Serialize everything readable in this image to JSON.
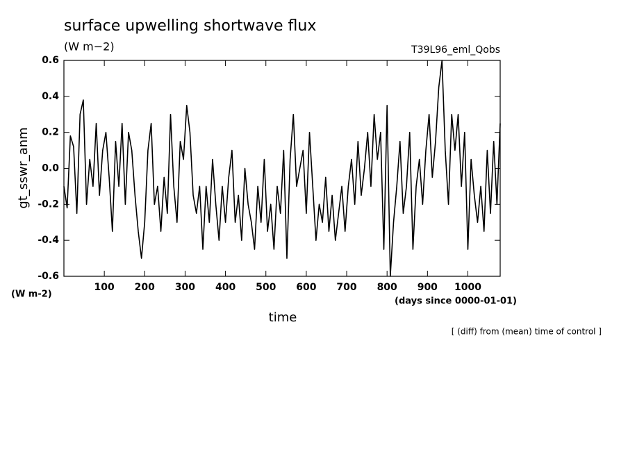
{
  "chart_data": {
    "type": "line",
    "title": "surface upwelling shortwave flux",
    "subtitle": "(W m−2)",
    "run_label": "T39L96_eml_Qobs",
    "y_label": "gt_sswr_anm",
    "y_units": "(W m-2)",
    "x_label": "time",
    "x_units": "(days since 0000-01-01)",
    "note": "[ (diff) from (mean) time of control ]",
    "color": "#000000",
    "xlim": [
      0,
      1080
    ],
    "ylim": [
      -0.6,
      0.6
    ],
    "xticks": [
      100,
      200,
      300,
      400,
      500,
      600,
      700,
      800,
      900,
      1000
    ],
    "yticks": [
      0.6,
      0.4,
      0.2,
      {
        "value": 0,
        "label": "0.0"
      },
      -0.2,
      -0.4,
      -0.6
    ],
    "x": [
      0,
      8,
      16,
      24,
      32,
      40,
      48,
      56,
      64,
      72,
      80,
      88,
      96,
      104,
      112,
      120,
      128,
      136,
      144,
      152,
      160,
      168,
      176,
      184,
      192,
      200,
      208,
      216,
      224,
      232,
      240,
      248,
      256,
      264,
      272,
      280,
      288,
      296,
      304,
      312,
      320,
      328,
      336,
      344,
      352,
      360,
      368,
      376,
      384,
      392,
      400,
      408,
      416,
      424,
      432,
      440,
      448,
      456,
      464,
      472,
      480,
      488,
      496,
      504,
      512,
      520,
      528,
      536,
      544,
      552,
      560,
      568,
      576,
      584,
      592,
      600,
      608,
      616,
      624,
      632,
      640,
      648,
      656,
      664,
      672,
      680,
      688,
      696,
      704,
      712,
      720,
      728,
      736,
      744,
      752,
      760,
      768,
      776,
      784,
      792,
      800,
      808,
      816,
      824,
      832,
      840,
      848,
      856,
      864,
      872,
      880,
      888,
      896,
      904,
      912,
      920,
      928,
      936,
      944,
      952,
      960,
      968,
      976,
      984,
      992,
      1000,
      1008,
      1016,
      1024,
      1032,
      1040,
      1048,
      1056,
      1064,
      1072,
      1080
    ],
    "values": [
      -0.1,
      -0.22,
      0.18,
      0.12,
      -0.25,
      0.3,
      0.38,
      -0.2,
      0.05,
      -0.1,
      0.25,
      -0.15,
      0.1,
      0.2,
      -0.05,
      -0.35,
      0.15,
      -0.1,
      0.25,
      -0.2,
      0.2,
      0.1,
      -0.15,
      -0.35,
      -0.5,
      -0.3,
      0.1,
      0.25,
      -0.2,
      -0.1,
      -0.35,
      -0.05,
      -0.25,
      0.3,
      -0.1,
      -0.3,
      0.15,
      0.05,
      0.35,
      0.2,
      -0.15,
      -0.25,
      -0.1,
      -0.45,
      -0.1,
      -0.3,
      0.05,
      -0.2,
      -0.4,
      -0.1,
      -0.3,
      -0.05,
      0.1,
      -0.3,
      -0.15,
      -0.4,
      0.0,
      -0.2,
      -0.3,
      -0.45,
      -0.1,
      -0.3,
      0.05,
      -0.35,
      -0.2,
      -0.45,
      -0.1,
      -0.25,
      0.1,
      -0.5,
      0.05,
      0.3,
      -0.1,
      0.0,
      0.1,
      -0.25,
      0.2,
      -0.1,
      -0.4,
      -0.2,
      -0.3,
      -0.05,
      -0.35,
      -0.15,
      -0.4,
      -0.25,
      -0.1,
      -0.35,
      -0.1,
      0.05,
      -0.2,
      0.15,
      -0.15,
      0.0,
      0.2,
      -0.1,
      0.3,
      0.05,
      0.2,
      -0.45,
      0.35,
      -0.6,
      -0.3,
      -0.1,
      0.15,
      -0.25,
      -0.1,
      0.2,
      -0.45,
      -0.1,
      0.05,
      -0.2,
      0.1,
      0.3,
      -0.05,
      0.15,
      0.45,
      0.6,
      0.1,
      -0.2,
      0.3,
      0.1,
      0.3,
      -0.1,
      0.2,
      -0.45,
      0.05,
      -0.15,
      -0.3,
      -0.1,
      -0.35,
      0.1,
      -0.25,
      0.15,
      -0.2,
      0.25
    ]
  }
}
